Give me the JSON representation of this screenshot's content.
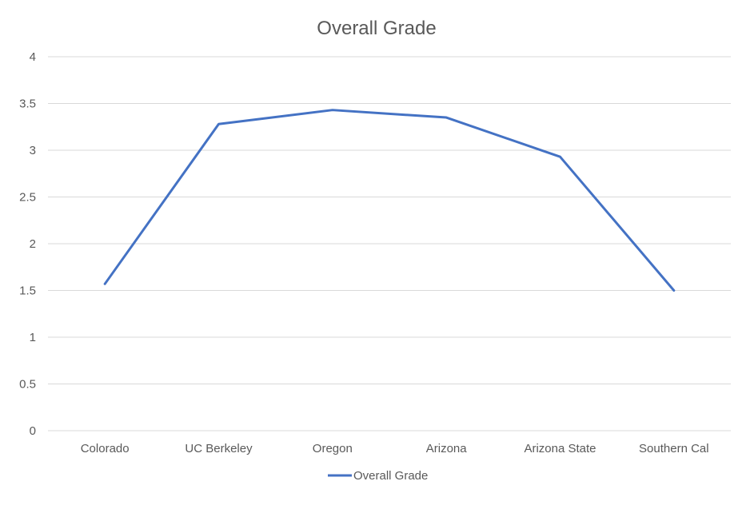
{
  "chart_data": {
    "type": "line",
    "title": "Overall Grade",
    "xlabel": "",
    "ylabel": "",
    "categories": [
      "Colorado",
      "UC Berkeley",
      "Oregon",
      "Arizona",
      "Arizona State",
      "Southern Cal"
    ],
    "series": [
      {
        "name": "Overall Grade",
        "values": [
          1.57,
          3.28,
          3.43,
          3.35,
          2.93,
          1.5
        ],
        "color": "#4472c4"
      }
    ],
    "ylim": [
      0,
      4
    ],
    "yticks": [
      "0",
      "0.5",
      "1",
      "1.5",
      "2",
      "2.5",
      "3",
      "3.5",
      "4"
    ],
    "grid": true,
    "legend": "bottom"
  }
}
